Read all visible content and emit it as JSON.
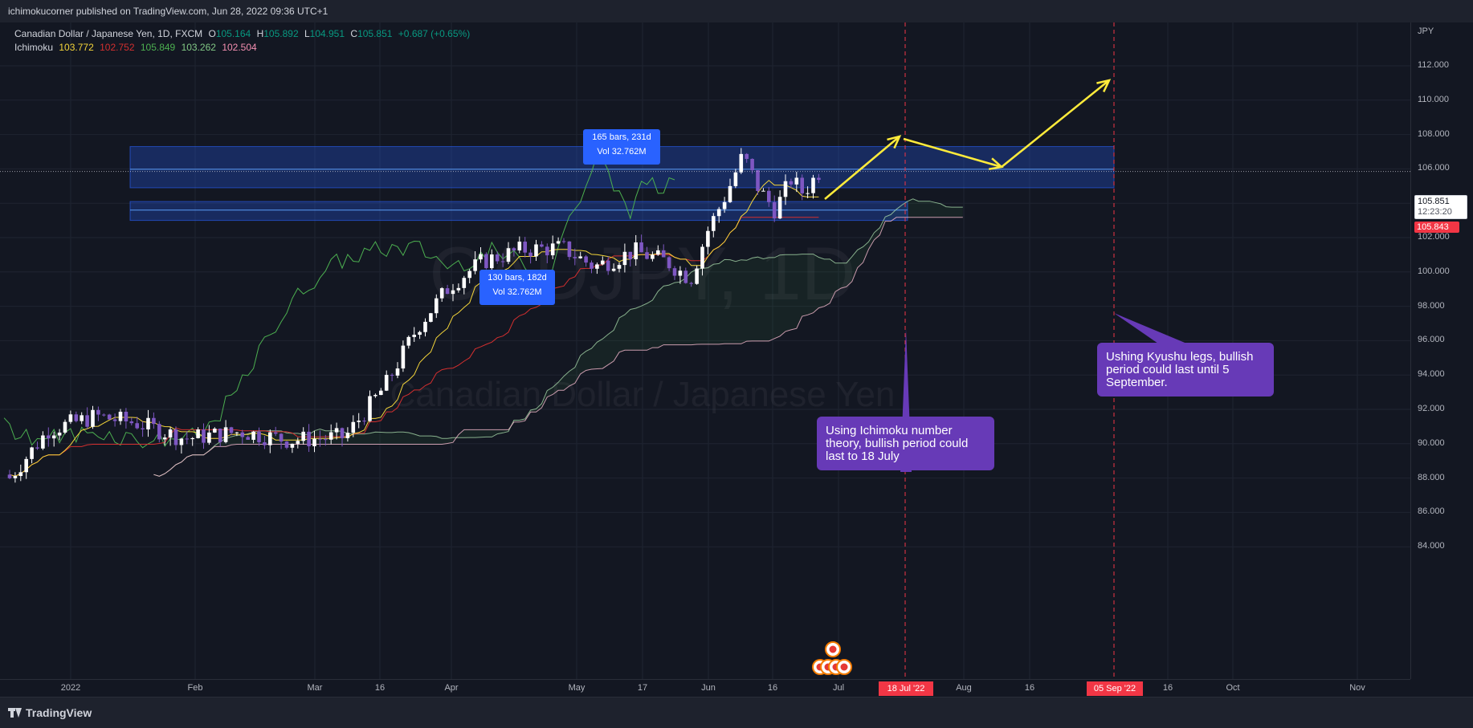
{
  "header": {
    "published_text": "ichimokucorner published on TradingView.com, Jun 28, 2022 09:36 UTC+1"
  },
  "legend": {
    "symbol_title": "Canadian Dollar / Japanese Yen, 1D, FXCM",
    "ohlc": [
      {
        "label": "O",
        "value": "105.164"
      },
      {
        "label": "H",
        "value": "105.892"
      },
      {
        "label": "L",
        "value": "104.951"
      },
      {
        "label": "C",
        "value": "105.851"
      }
    ],
    "change": "+0.687 (+0.65%)",
    "indicator_name": "Ichimoku",
    "indicator_values": [
      {
        "value": "103.772",
        "color": "#f5d63a"
      },
      {
        "value": "102.752",
        "color": "#d32f2f"
      },
      {
        "value": "105.849",
        "color": "#4caf50"
      },
      {
        "value": "103.262",
        "color": "#81c784"
      },
      {
        "value": "102.504",
        "color": "#f48fb1"
      }
    ]
  },
  "watermark": {
    "symbol": "CADJPY, 1D",
    "description": "Canadian Dollar / Japanese Yen"
  },
  "price_axis": {
    "currency": "JPY",
    "ticks": [
      "112.000",
      "110.000",
      "108.000",
      "106.000",
      "104.000",
      "102.000",
      "100.000",
      "98.000",
      "96.000",
      "94.000",
      "92.000",
      "90.000",
      "88.000",
      "86.000",
      "84.000"
    ],
    "current_price": "105.851",
    "countdown": "12:23:20",
    "bid_label": "105.843"
  },
  "time_axis": {
    "ticks": [
      "2022",
      "Feb",
      "Mar",
      "16",
      "Apr",
      "May",
      "17",
      "Jun",
      "16",
      "Jul",
      "Aug",
      "16",
      "16",
      "Oct",
      "Nov"
    ],
    "highlight_labels": [
      "18 Jul '22",
      "05 Sep '22"
    ]
  },
  "measure_labels": [
    {
      "line1": "165 bars, 231d",
      "line2": "Vol 32.762M"
    },
    {
      "line1": "130 bars, 182d",
      "line2": "Vol 32.762M"
    }
  ],
  "notes": [
    {
      "text": "Using Ichimoku number theory, bullish period could last to 18 July"
    },
    {
      "text": "Ushing Kyushu legs, bullish period could last until 5 September."
    }
  ],
  "footer": {
    "brand": "TradingView"
  },
  "colors": {
    "background": "#131722",
    "up_candle": "#ffffff",
    "down_candle": "#7e57c2",
    "tenkan": "#f5d63a",
    "kijun": "#d32f2f",
    "chikou": "#4caf50",
    "span_a": "#a5d6a7",
    "span_b": "#f8bbd0",
    "zone": "#2962ff",
    "arrow": "#ffeb3b",
    "note_bg": "#673ab7",
    "date_highlight": "#f23645"
  }
}
